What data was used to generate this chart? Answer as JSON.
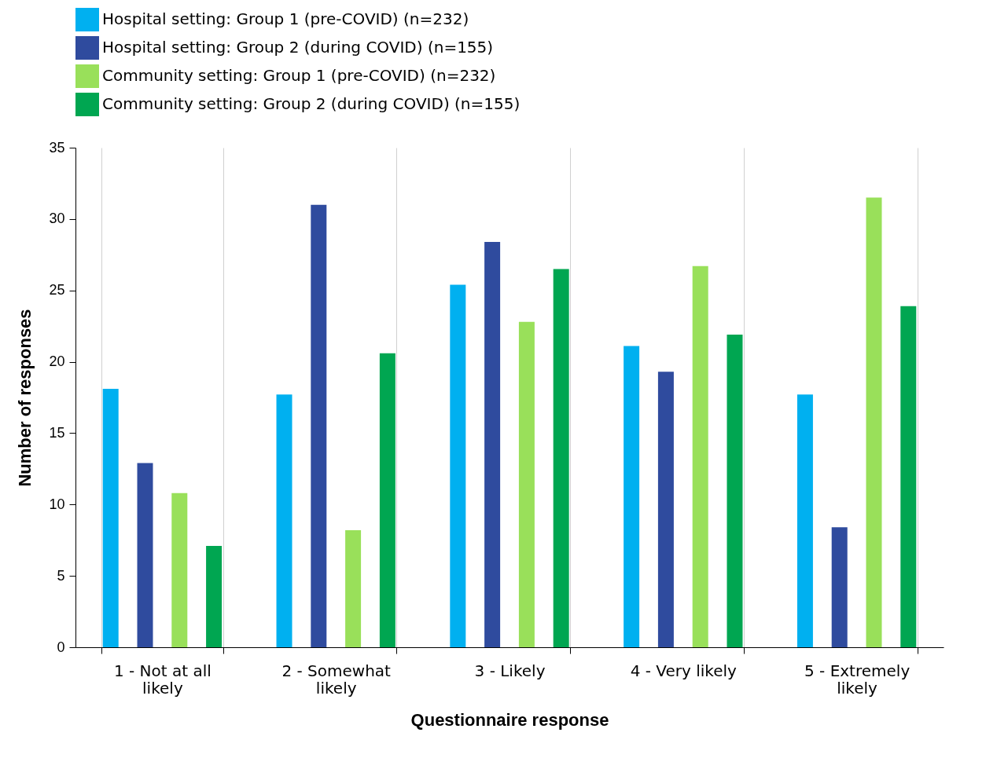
{
  "chart_data": {
    "type": "bar",
    "xlabel": "Questionnaire response",
    "ylabel": "Number of responses",
    "categories": [
      "1 - Not at all likely",
      "2 - Somewhat likely",
      "3 - Likely",
      "4 - Very likely",
      "5 - Extremely likely"
    ],
    "series": [
      {
        "name": "Hospital setting: Group 1 (pre-COVID) (n=232)",
        "color": "#00b0f0",
        "values": [
          18.1,
          17.7,
          25.4,
          21.1,
          17.7
        ]
      },
      {
        "name": "Hospital setting: Group 2 (during COVID) (n=155)",
        "color": "#2f4b9e",
        "values": [
          12.9,
          31,
          28.4,
          19.3,
          8.4
        ]
      },
      {
        "name": "Community setting: Group 1 (pre-COVID) (n=232)",
        "color": "#99e05a",
        "values": [
          10.8,
          8.2,
          22.8,
          26.7,
          31.5
        ]
      },
      {
        "name": "Community setting: Group 2 (during COVID) (n=155)",
        "color": "#00a651",
        "values": [
          7.1,
          20.6,
          26.5,
          21.9,
          23.9
        ]
      }
    ],
    "ylim": [
      0,
      35
    ],
    "yticks": [
      0,
      5,
      10,
      15,
      20,
      25,
      30,
      35
    ],
    "grid": "x",
    "legend": "top"
  }
}
